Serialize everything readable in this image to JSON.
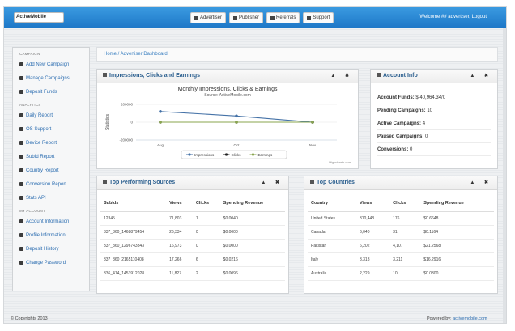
{
  "header": {
    "logo_text": "ActiveMobile",
    "nav": [
      {
        "label": "Advertiser",
        "icon": "grid-icon"
      },
      {
        "label": "Publisher",
        "icon": "users-icon"
      },
      {
        "label": "Referrals",
        "icon": "gear-icon"
      },
      {
        "label": "Support",
        "icon": "user-icon"
      }
    ],
    "welcome": "Welcome ## advertiser, Logout"
  },
  "sidebar": {
    "sections": [
      {
        "heading": "CAMPAIGN",
        "items": [
          "Add New Campaign",
          "Manage Campaigns",
          "Deposit Funds"
        ]
      },
      {
        "heading": "ANALYTICS",
        "items": [
          "Daily Report",
          "OS Support",
          "Device Report",
          "SubId Report",
          "Country Report",
          "Conversion Report",
          "Stats API"
        ]
      },
      {
        "heading": "MY ACCOUNT",
        "items": [
          "Account Information",
          "Profile Information",
          "Deposit History",
          "Change Password"
        ]
      }
    ]
  },
  "breadcrumb": "Home / Advertiser Dashboard",
  "impressions_panel": {
    "title": "Impressions, Clicks and Earnings",
    "controls": "▲ ✖",
    "credit": "Highcharts.com"
  },
  "chart_data": {
    "type": "line",
    "title": "Monthly Impressions, Clicks & Earnings",
    "subtitle": "Source: ActiveMobile.com",
    "ylabel": "Statistics",
    "xlabel": "",
    "categories": [
      "Aug",
      "Oct",
      "Nov"
    ],
    "y_ticks": [
      "200000",
      "0",
      "-200000"
    ],
    "ylim": [
      -200000,
      200000
    ],
    "series": [
      {
        "name": "Impressions",
        "values": [
          120000,
          70000,
          0
        ],
        "color": "#4572a7"
      },
      {
        "name": "Clicks",
        "values": [
          0,
          0,
          0
        ],
        "color": "#222222"
      },
      {
        "name": "Earnings",
        "values": [
          0,
          0,
          0
        ],
        "color": "#89a54e"
      }
    ],
    "legend": "bottom"
  },
  "account_panel": {
    "title": "Account Info",
    "controls": "▲ ✖",
    "rows": [
      {
        "label": "Account Funds:",
        "value": "$ 40,964.34/0"
      },
      {
        "label": "Pending Campaigns:",
        "value": "10"
      },
      {
        "label": "Active Campaigns:",
        "value": "4"
      },
      {
        "label": "Paused Campaigns:",
        "value": "0"
      },
      {
        "label": "Conversions:",
        "value": "0"
      }
    ]
  },
  "sources_panel": {
    "title": "Top Performing Sources",
    "controls": "▲ ✖",
    "columns": [
      "SubIds",
      "Views",
      "Clicks",
      "Spending Revenue"
    ],
    "rows": [
      [
        "12345",
        "71,803",
        "1",
        "$0.0040"
      ],
      [
        "337_360_1468879454",
        "26,334",
        "0",
        "$0.0000"
      ],
      [
        "337_360_1296743343",
        "16,973",
        "0",
        "$0.0000"
      ],
      [
        "337_360_2165110408",
        "17,266",
        "6",
        "$0.0216"
      ],
      [
        "336_414_1453912028",
        "11,827",
        "2",
        "$0.0096"
      ]
    ]
  },
  "countries_panel": {
    "title": "Top Countries",
    "controls": "▲ ✖",
    "columns": [
      "Country",
      "Views",
      "Clicks",
      "Spending Revenue"
    ],
    "rows": [
      [
        "United States",
        "310,448",
        "176",
        "$0.6648"
      ],
      [
        "Canada",
        "6,040",
        "31",
        "$0.1164"
      ],
      [
        "Pakistan",
        "6,202",
        "4,107",
        "$21.2568"
      ],
      [
        "Italy",
        "3,313",
        "3,211",
        "$16.2916"
      ],
      [
        "Australia",
        "2,229",
        "10",
        "$0.0300"
      ]
    ]
  },
  "footer": {
    "copyright": "© Copyrights 2013",
    "powered_prefix": "Powered by:",
    "powered_link": "activemobile.com"
  }
}
